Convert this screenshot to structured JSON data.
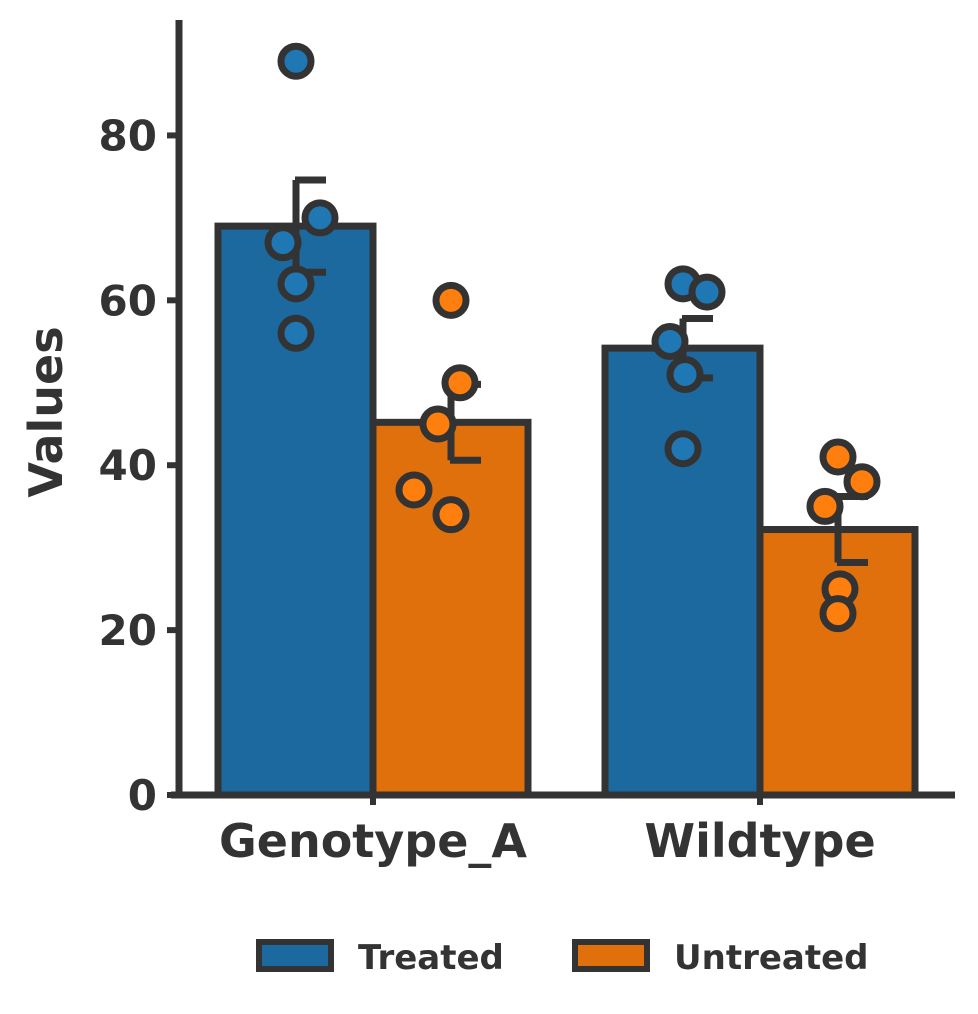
{
  "chart_data": {
    "type": "bar",
    "categories": [
      "Genotype_A",
      "Wildtype"
    ],
    "xlabel": "",
    "ylabel": "Values",
    "ylim": [
      0,
      94
    ],
    "yticks": [
      0,
      20,
      40,
      60,
      80
    ],
    "grid": false,
    "legend_position": "bottom",
    "series": [
      {
        "name": "Treated",
        "color": "#1f77b4",
        "values": [
          69,
          54.2
        ],
        "errors": [
          5.6,
          3.6
        ],
        "points": [
          [
            89,
            70,
            67,
            62,
            56
          ],
          [
            62,
            61,
            55,
            51,
            42
          ]
        ]
      },
      {
        "name": "Untreated",
        "color": "#ff7f0e",
        "values": [
          45.2,
          32.2
        ],
        "errors": [
          4.6,
          4.0
        ],
        "points": [
          [
            60,
            50,
            45,
            37,
            34
          ],
          [
            41,
            38,
            35,
            25,
            22
          ]
        ]
      }
    ]
  }
}
